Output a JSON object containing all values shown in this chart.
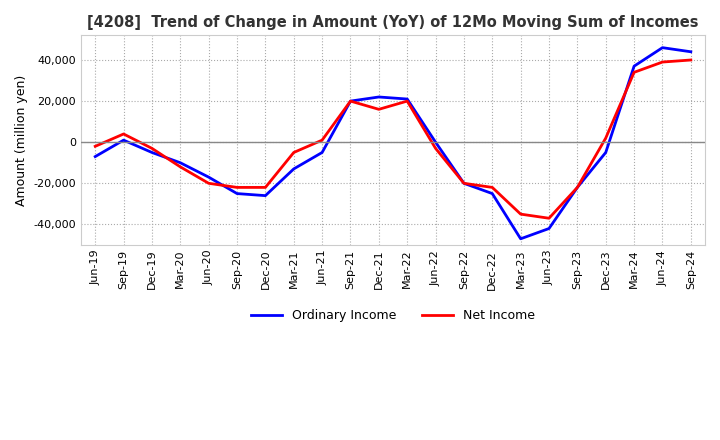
{
  "title": "[4208]  Trend of Change in Amount (YoY) of 12Mo Moving Sum of Incomes",
  "ylabel": "Amount (million yen)",
  "ylim": [
    -50000,
    52000
  ],
  "yticks": [
    -40000,
    -20000,
    0,
    20000,
    40000
  ],
  "x_labels": [
    "Jun-19",
    "Sep-19",
    "Dec-19",
    "Mar-20",
    "Jun-20",
    "Sep-20",
    "Dec-20",
    "Mar-21",
    "Jun-21",
    "Sep-21",
    "Dec-21",
    "Mar-22",
    "Jun-22",
    "Sep-22",
    "Dec-22",
    "Mar-23",
    "Jun-23",
    "Sep-23",
    "Dec-23",
    "Mar-24",
    "Jun-24",
    "Sep-24"
  ],
  "ordinary_income": [
    -7000,
    1000,
    -5000,
    -10000,
    -17000,
    -25000,
    -26000,
    -13000,
    -5000,
    20000,
    22000,
    21000,
    0,
    -20000,
    -25000,
    -47000,
    -42000,
    -22000,
    -5000,
    37000,
    46000,
    44000
  ],
  "net_income": [
    -2000,
    4000,
    -3000,
    -12000,
    -20000,
    -22000,
    -22000,
    -5000,
    1000,
    20000,
    16000,
    20000,
    -3000,
    -20000,
    -22000,
    -35000,
    -37000,
    -22000,
    2000,
    34000,
    39000,
    40000
  ],
  "ordinary_color": "#0000ff",
  "net_color": "#ff0000",
  "grid_color": "#aaaaaa",
  "zero_line_color": "#888888",
  "background_color": "#ffffff",
  "title_color": "#333333",
  "legend_ordinary": "Ordinary Income",
  "legend_net": "Net Income"
}
